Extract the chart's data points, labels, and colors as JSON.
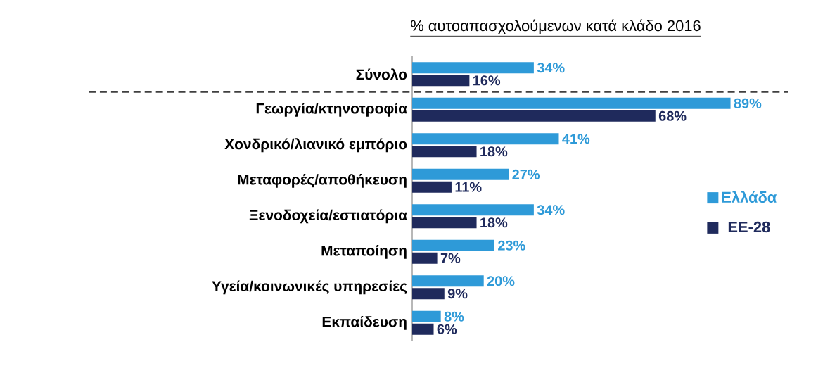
{
  "chart_data": {
    "type": "bar",
    "orientation": "horizontal",
    "title": "% αυτοαπασχολούμενων κατά κλάδο 2016",
    "categories": [
      "Σύνολο",
      "Γεωργία/κτηνοτροφία",
      "Χονδρικό/λιανικό εμπόριο",
      "Μεταφορές/αποθήκευση",
      "Ξενοδοχεία/εστιατόρια",
      "Μεταποίηση",
      "Υγεία/κοινωνικές υπηρεσίες",
      "Εκπαίδευση"
    ],
    "series": [
      {
        "name": "Ελλάδα",
        "color": "#2e9ad8",
        "values": [
          34,
          89,
          41,
          27,
          34,
          23,
          20,
          8
        ],
        "value_labels": [
          "34%",
          "89%",
          "41%",
          "27%",
          "34%",
          "23%",
          "20%",
          "8%"
        ]
      },
      {
        "name": "ΕΕ-28",
        "color": "#1f2a5c",
        "values": [
          16,
          68,
          18,
          11,
          18,
          7,
          9,
          6
        ],
        "value_labels": [
          "16%",
          "68%",
          "18%",
          "11%",
          "18%",
          "7%",
          "9%",
          "6%"
        ]
      }
    ],
    "legend": "right",
    "grid": false,
    "tick_labels": "y"
  }
}
